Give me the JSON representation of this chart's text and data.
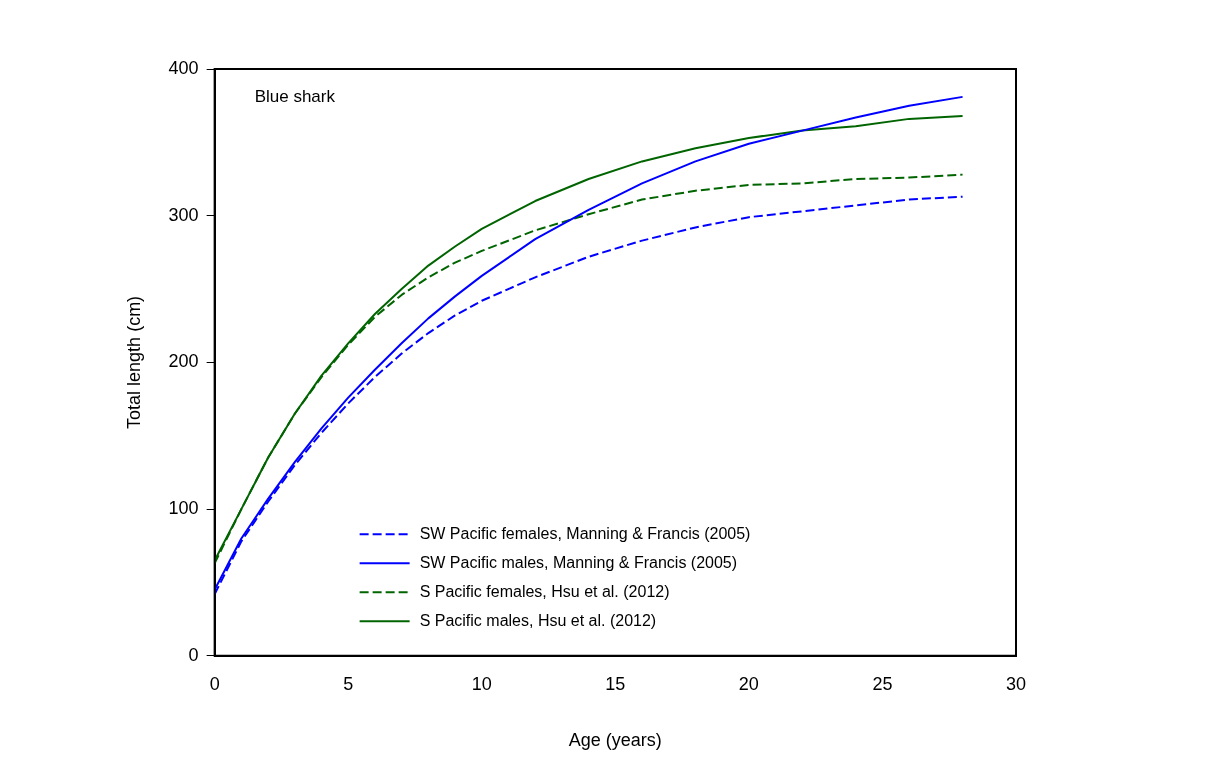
{
  "chart_data": {
    "type": "line",
    "xlabel": "Age (years)",
    "ylabel": "Total length (cm)",
    "annotations": [
      "Blue shark"
    ],
    "x": [
      0,
      1,
      2,
      3,
      4,
      5,
      6,
      7,
      8,
      9,
      10,
      12,
      14,
      16,
      18,
      20,
      22,
      24,
      26,
      28
    ],
    "xlim": [
      0,
      30
    ],
    "xticks": [
      0,
      5,
      10,
      15,
      20,
      25,
      30
    ],
    "ylim": [
      0,
      400
    ],
    "yticks": [
      0,
      100,
      200,
      300,
      400
    ],
    "grid": false,
    "legend": "bottom",
    "marker": "none",
    "series": [
      {
        "name": "SW Pacific females, Manning & Francis (2005)",
        "color": "#0000ff",
        "line_style": "dashed",
        "values": [
          42,
          78,
          105,
          130,
          152,
          172,
          190,
          206,
          220,
          232,
          242,
          258,
          272,
          283,
          292,
          299,
          303,
          307,
          311,
          313
        ]
      },
      {
        "name": "SW Pacific males, Manning & Francis (2005)",
        "color": "#0000ff",
        "line_style": "solid",
        "values": [
          45,
          80,
          107,
          132,
          155,
          176,
          195,
          213,
          230,
          245,
          259,
          284,
          304,
          322,
          337,
          349,
          358,
          367,
          375,
          381
        ]
      },
      {
        "name": "S Pacific females, Hsu et al. (2012)",
        "color": "#006400",
        "line_style": "dashed",
        "values": [
          63,
          100,
          135,
          165,
          190,
          212,
          231,
          246,
          258,
          268,
          276,
          290,
          301,
          311,
          317,
          321,
          322,
          325,
          326,
          328
        ]
      },
      {
        "name": "S Pacific males, Hsu et al. (2012)",
        "color": "#006400",
        "line_style": "solid",
        "values": [
          65,
          100,
          135,
          165,
          191,
          213,
          233,
          250,
          266,
          279,
          291,
          310,
          325,
          337,
          346,
          353,
          358,
          361,
          366,
          368
        ]
      }
    ]
  }
}
